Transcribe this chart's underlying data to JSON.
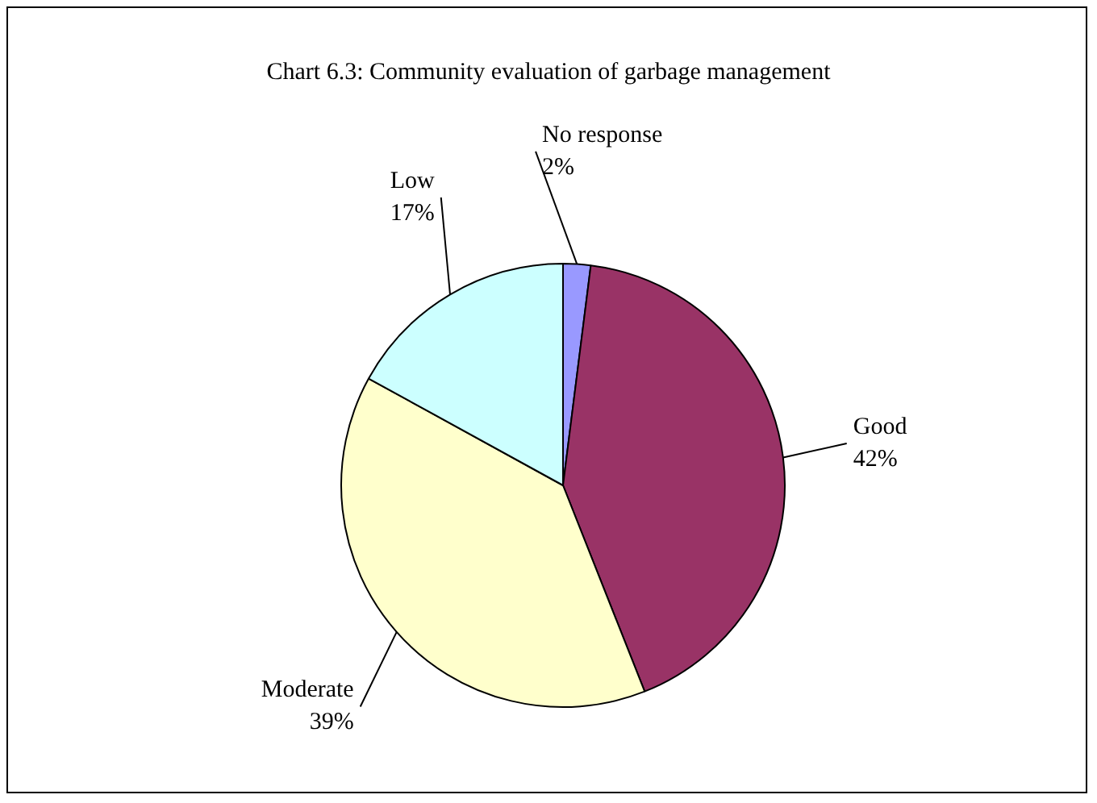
{
  "chart_data": {
    "type": "pie",
    "title": "Chart 6.3: Community evaluation of garbage management",
    "categories": [
      "No response",
      "Good",
      "Moderate",
      "Low"
    ],
    "values": [
      2,
      42,
      39,
      17
    ],
    "value_labels": [
      "2%",
      "42%",
      "39%",
      "17%"
    ],
    "colors": [
      "#9999ff",
      "#993366",
      "#ffffcc",
      "#ccffff"
    ],
    "legend": false
  }
}
